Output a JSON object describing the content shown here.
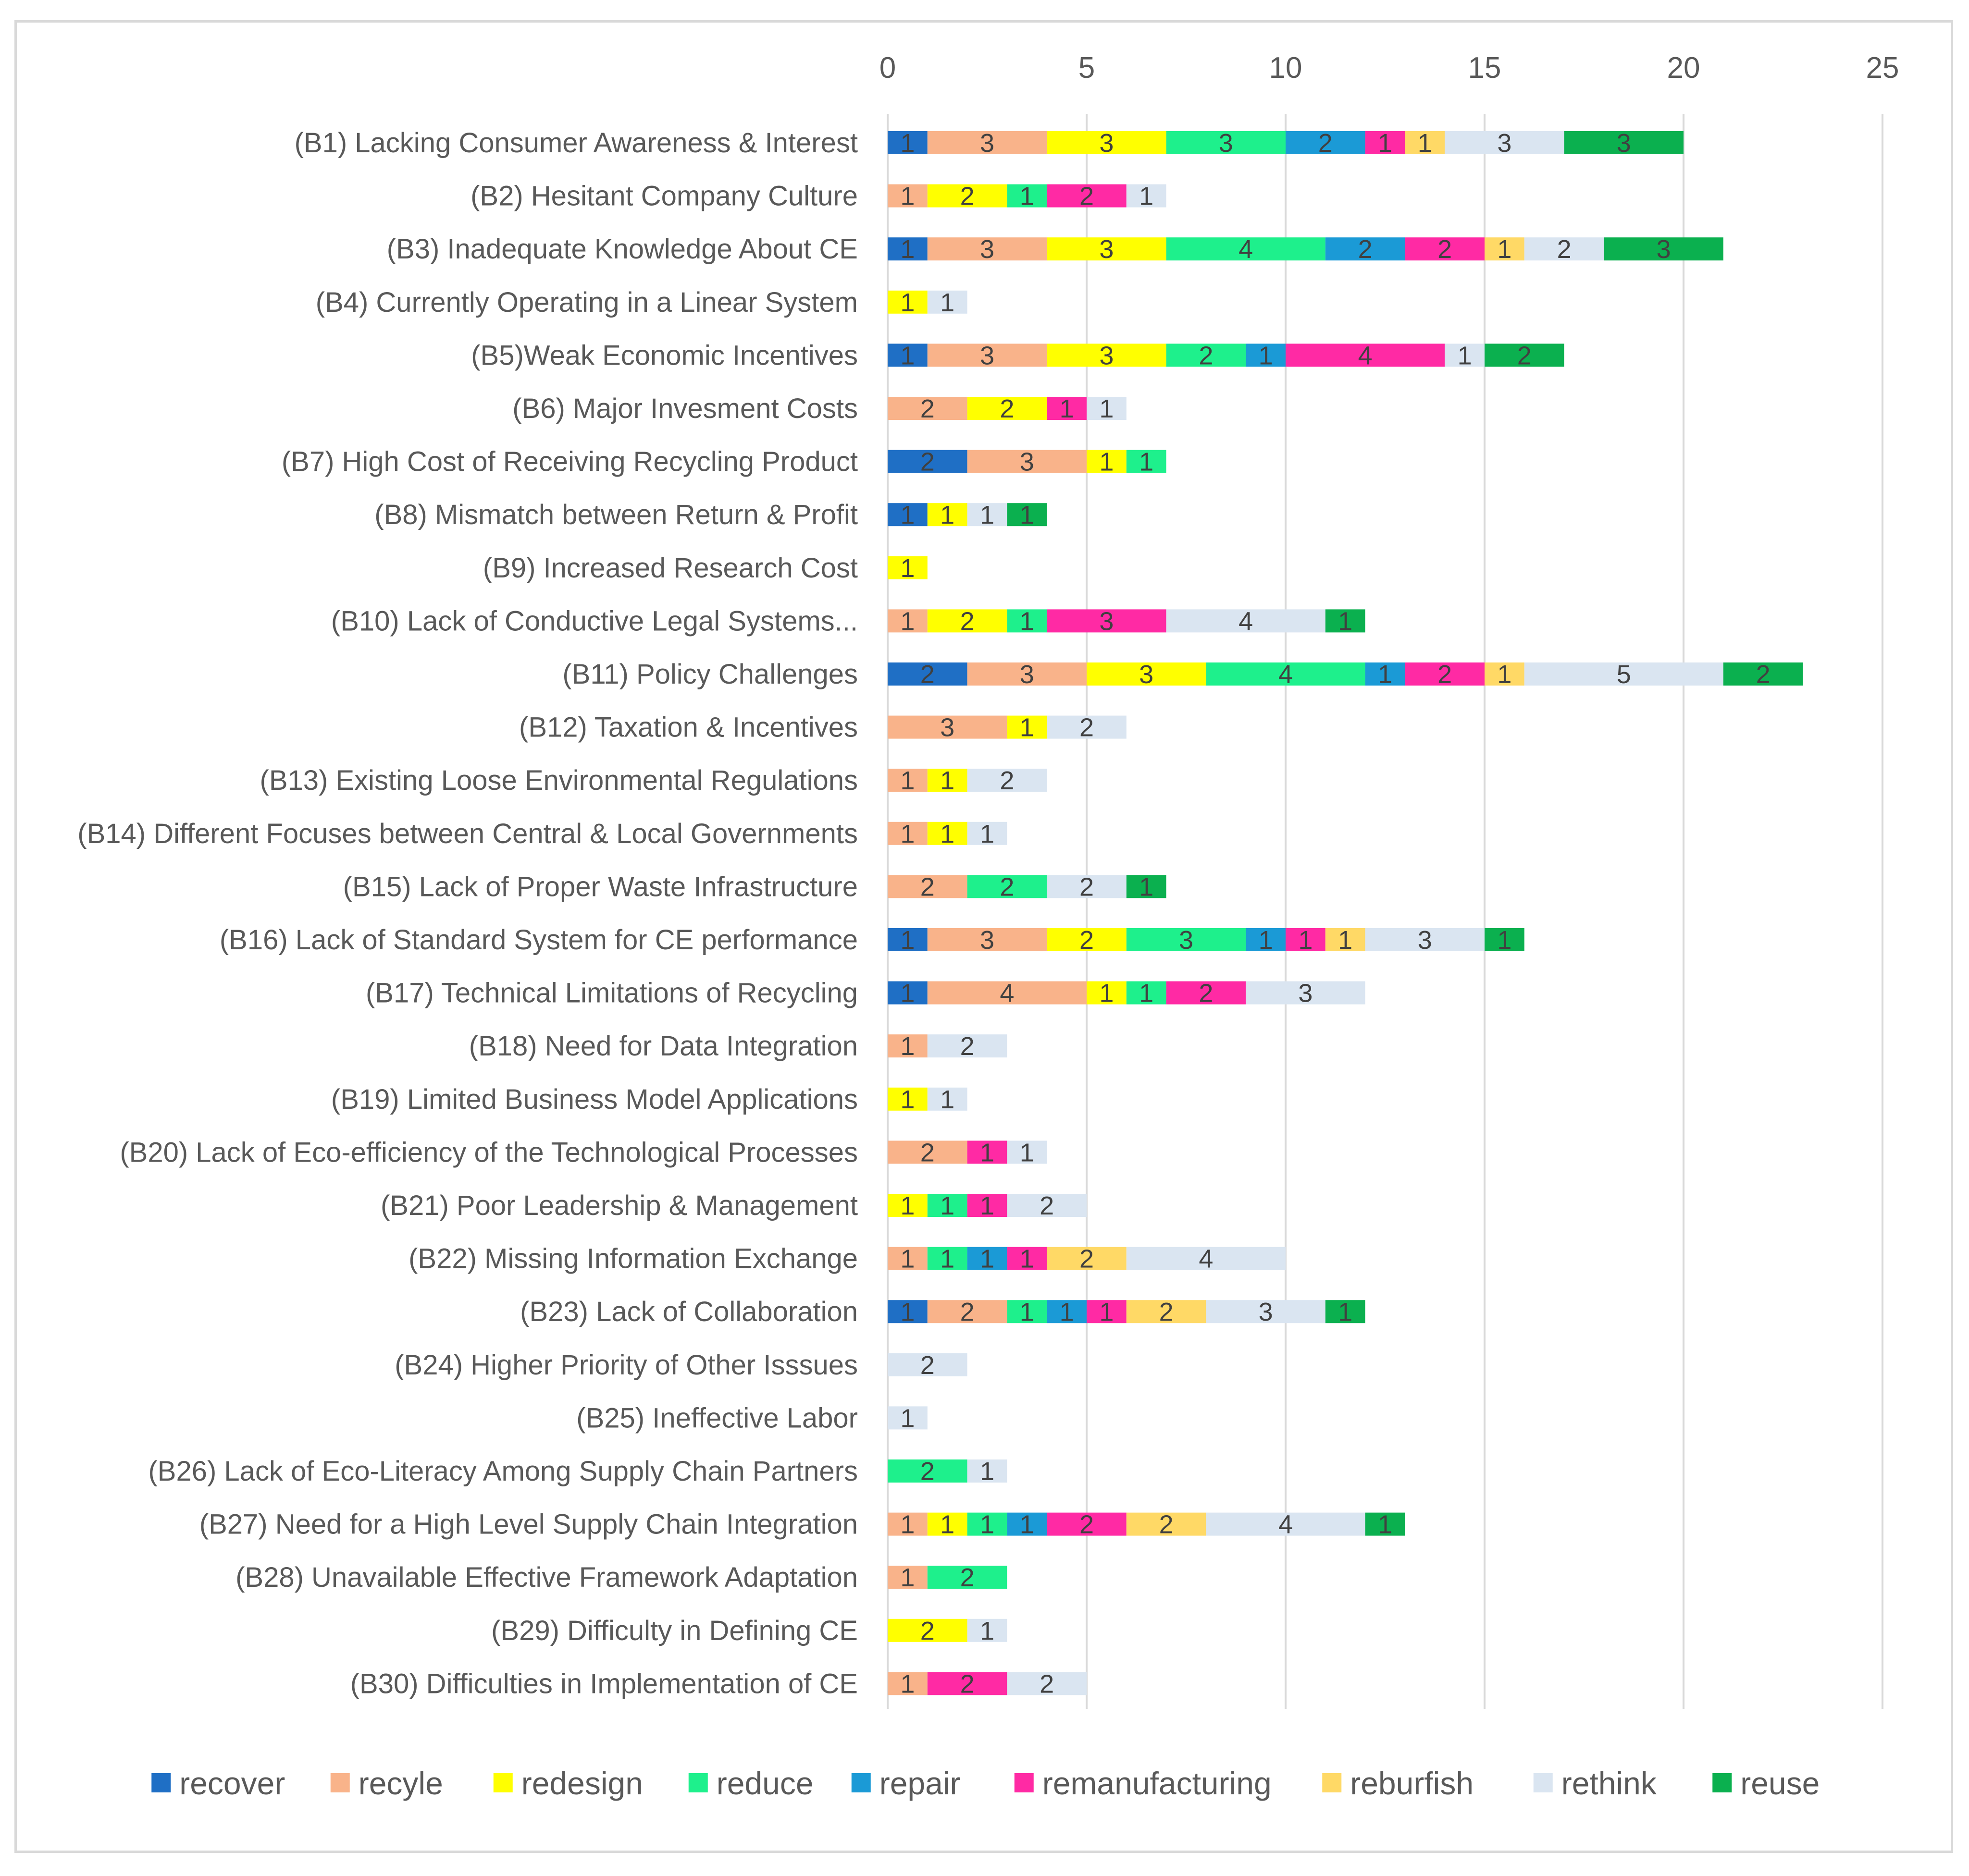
{
  "chart_data": {
    "type": "bar",
    "orientation": "horizontal",
    "stacked": true,
    "title": "",
    "xlabel": "",
    "ylabel": "",
    "xlim": [
      0,
      25
    ],
    "x_ticks": [
      0,
      5,
      10,
      15,
      20,
      25
    ],
    "x_axis_position": "top",
    "grid": true,
    "legend_position": "bottom",
    "categories": [
      "(B1) Lacking Consumer Awareness & Interest",
      "(B2) Hesitant Company Culture",
      "(B3) Inadequate Knowledge About CE",
      "(B4) Currently Operating in a Linear System",
      "(B5)Weak Economic Incentives",
      "(B6) Major Invesment Costs",
      "(B7) High Cost of Receiving Recycling Product",
      "(B8) Mismatch between Return & Profit",
      "(B9) Increased Research Cost",
      "(B10) Lack of Conductive Legal Systems...",
      "(B11) Policy Challenges",
      "(B12) Taxation & Incentives",
      "(B13) Existing Loose Environmental Regulations",
      "(B14) Different Focuses between Central & Local Governments",
      "(B15) Lack of Proper Waste Infrastructure",
      "(B16) Lack of Standard System for CE performance",
      "(B17) Technical Limitations of Recycling",
      "(B18) Need for Data Integration",
      "(B19) Limited Business Model Applications",
      "(B20) Lack of Eco-efficiency of the Technological Processes",
      "(B21) Poor Leadership & Management",
      "(B22) Missing Information Exchange",
      "(B23) Lack of Collaboration",
      "(B24) Higher Priority of Other Isssues",
      "(B25) Ineffective Labor",
      "(B26) Lack of Eco-Literacy Among Supply Chain Partners",
      "(B27) Need for a High Level Supply Chain Integration",
      "(B28) Unavailable Effective Framework Adaptation",
      "(B29) Difficulty in Defining CE",
      "(B30) Difficulties in Implementation of CE"
    ],
    "series": [
      {
        "name": "recover",
        "color": "#1f6fc5",
        "values": [
          1,
          0,
          1,
          0,
          1,
          0,
          2,
          1,
          0,
          0,
          2,
          0,
          0,
          0,
          0,
          1,
          1,
          0,
          0,
          0,
          0,
          0,
          1,
          0,
          0,
          0,
          0,
          0,
          0,
          0
        ]
      },
      {
        "name": "recyle",
        "color": "#f9b38a",
        "values": [
          3,
          1,
          3,
          0,
          3,
          2,
          3,
          0,
          0,
          1,
          3,
          3,
          1,
          1,
          2,
          3,
          4,
          1,
          0,
          2,
          0,
          1,
          2,
          0,
          0,
          0,
          1,
          1,
          0,
          1
        ]
      },
      {
        "name": "redesign",
        "color": "#ffff00",
        "values": [
          3,
          2,
          3,
          1,
          3,
          2,
          1,
          1,
          1,
          2,
          3,
          1,
          1,
          1,
          0,
          2,
          1,
          0,
          1,
          0,
          1,
          0,
          0,
          0,
          0,
          0,
          1,
          0,
          2,
          0
        ]
      },
      {
        "name": "reduce",
        "color": "#1ef08c",
        "values": [
          3,
          1,
          4,
          0,
          2,
          0,
          1,
          0,
          0,
          1,
          4,
          0,
          0,
          0,
          2,
          3,
          1,
          0,
          0,
          0,
          1,
          1,
          1,
          0,
          0,
          2,
          1,
          2,
          0,
          0
        ]
      },
      {
        "name": "repair",
        "color": "#1b9ad6",
        "values": [
          2,
          0,
          2,
          0,
          1,
          0,
          0,
          0,
          0,
          0,
          1,
          0,
          0,
          0,
          0,
          1,
          0,
          0,
          0,
          0,
          0,
          1,
          1,
          0,
          0,
          0,
          1,
          0,
          0,
          0
        ]
      },
      {
        "name": "remanufacturing",
        "color": "#ff2aa4",
        "values": [
          1,
          2,
          2,
          0,
          4,
          1,
          0,
          0,
          0,
          3,
          2,
          0,
          0,
          0,
          0,
          1,
          2,
          0,
          0,
          1,
          1,
          1,
          1,
          0,
          0,
          0,
          2,
          0,
          0,
          2
        ]
      },
      {
        "name": "reburfish",
        "color": "#ffd966",
        "values": [
          1,
          0,
          1,
          0,
          0,
          0,
          0,
          0,
          0,
          0,
          1,
          0,
          0,
          0,
          0,
          1,
          0,
          0,
          0,
          0,
          0,
          2,
          2,
          0,
          0,
          0,
          2,
          0,
          0,
          0
        ]
      },
      {
        "name": "rethink",
        "color": "#dae5f1",
        "values": [
          3,
          1,
          2,
          1,
          1,
          1,
          0,
          1,
          0,
          4,
          5,
          2,
          2,
          1,
          2,
          3,
          3,
          2,
          1,
          1,
          2,
          4,
          3,
          2,
          1,
          1,
          4,
          0,
          1,
          2
        ]
      },
      {
        "name": "reuse",
        "color": "#0bb04f",
        "values": [
          3,
          0,
          3,
          0,
          2,
          0,
          0,
          1,
          0,
          1,
          2,
          0,
          0,
          0,
          1,
          1,
          0,
          0,
          0,
          0,
          0,
          0,
          1,
          0,
          0,
          0,
          1,
          0,
          0,
          0
        ]
      }
    ]
  }
}
